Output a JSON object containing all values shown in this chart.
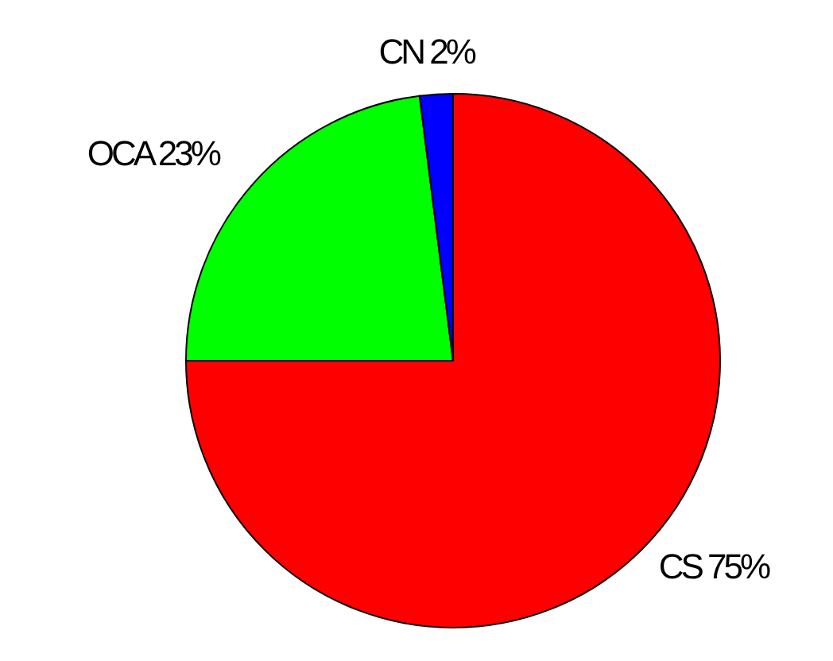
{
  "chart_data": {
    "type": "pie",
    "categories": [
      "CS",
      "OCA",
      "CN"
    ],
    "values": [
      75,
      23,
      2
    ],
    "value_labels": [
      "75%",
      "23%",
      "2%"
    ],
    "colors": [
      "#ff0000",
      "#00ff00",
      "#0000ff"
    ]
  }
}
